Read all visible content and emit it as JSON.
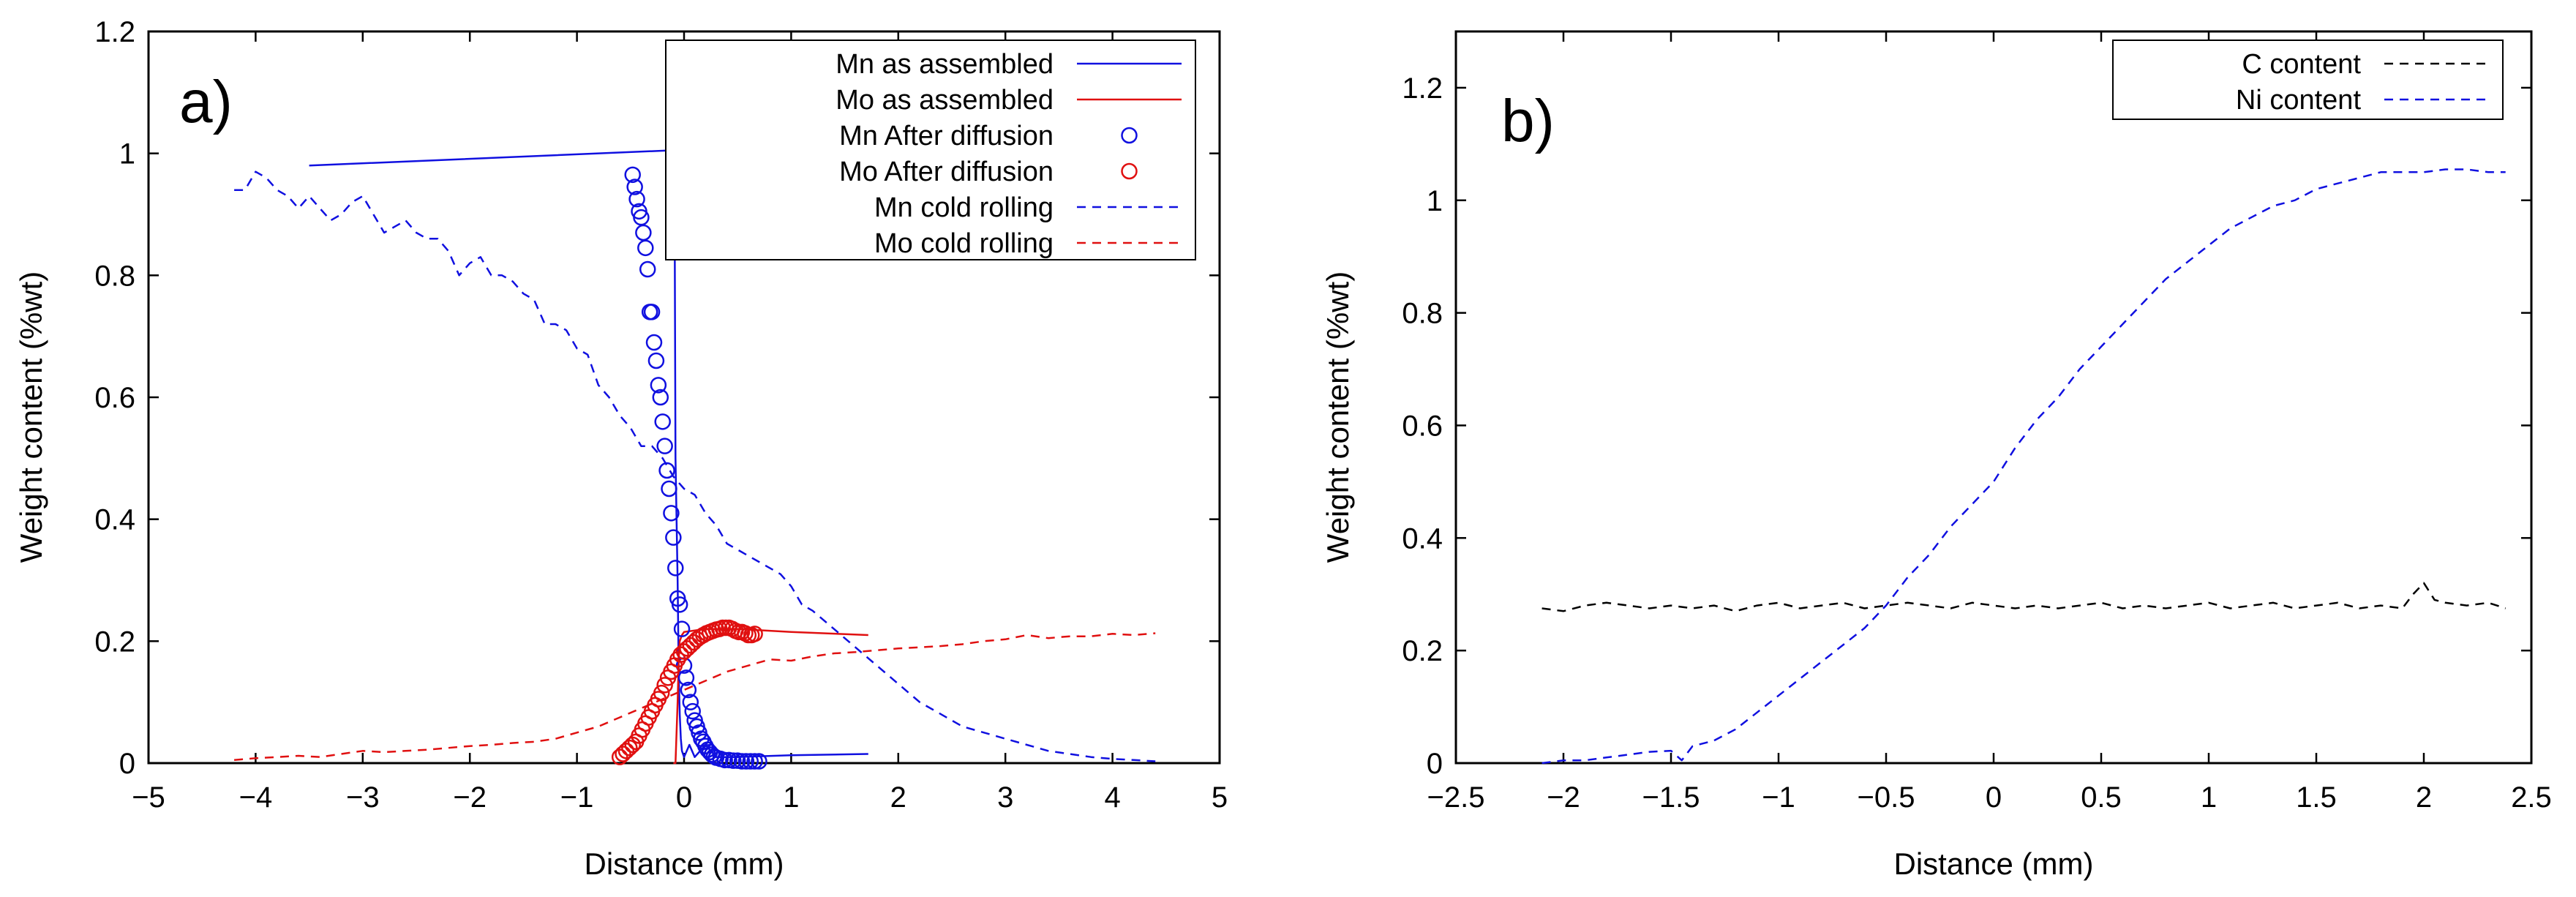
{
  "chart_data": [
    {
      "type": "line",
      "panel_label": "a)",
      "xlabel": "Distance (mm)",
      "ylabel": "Weight content (%wt)",
      "xlim": [
        -5,
        5
      ],
      "ylim": [
        0,
        1.2
      ],
      "xticks": [
        -5,
        -4,
        -3,
        -2,
        -1,
        0,
        1,
        2,
        3,
        4,
        5
      ],
      "yticks": [
        0,
        0.2,
        0.4,
        0.6,
        0.8,
        1,
        1.2
      ],
      "xtick_labels": [
        "−5",
        "−4",
        "−3",
        "−2",
        "−1",
        "0",
        "1",
        "2",
        "3",
        "4",
        "5"
      ],
      "ytick_labels": [
        "0",
        "0.2",
        "0.4",
        "0.6",
        "0.8",
        "1",
        "1.2"
      ],
      "legend_position": "top-right",
      "series": [
        {
          "name": "Mn as assembled",
          "style": "solid",
          "color": "#1010e0",
          "x": [
            -3.5,
            -0.12,
            -0.1,
            -0.09,
            -0.09,
            -0.08,
            -0.06,
            -0.05,
            -0.04,
            -0.03,
            -0.02,
            0.0,
            0.05,
            0.1,
            0.2,
            0.3,
            0.5,
            1.0,
            1.72
          ],
          "y": [
            0.98,
            1.005,
            1.01,
            0.96,
            1.02,
            0.5,
            0.3,
            0.15,
            0.08,
            0.04,
            0.02,
            0.01,
            0.03,
            0.01,
            0.03,
            0.01,
            0.01,
            0.013,
            0.015
          ]
        },
        {
          "name": "Mo as assembled",
          "style": "solid",
          "color": "#e01010",
          "x": [
            -0.1,
            -0.08,
            -0.06,
            -0.05,
            -0.04,
            -0.02,
            0.0,
            0.2,
            0.5,
            1.0,
            1.72
          ],
          "y": [
            0.0,
            0.0,
            0.1,
            0.17,
            0.2,
            0.21,
            0.215,
            0.22,
            0.22,
            0.215,
            0.21
          ]
        },
        {
          "name": "Mn After diffusion",
          "style": "circle",
          "color": "#1010e0",
          "x": [
            -0.48,
            -0.46,
            -0.44,
            -0.42,
            -0.4,
            -0.38,
            -0.36,
            -0.34,
            -0.32,
            -0.3,
            -0.28,
            -0.26,
            -0.24,
            -0.22,
            -0.2,
            -0.18,
            -0.16,
            -0.14,
            -0.12,
            -0.1,
            -0.08,
            -0.06,
            -0.04,
            -0.02,
            0.0,
            0.02,
            0.04,
            0.06,
            0.08,
            0.1,
            0.12,
            0.14,
            0.16,
            0.18,
            0.2,
            0.22,
            0.24,
            0.26,
            0.28,
            0.3,
            0.34,
            0.38,
            0.42,
            0.46,
            0.5,
            0.54,
            0.58,
            0.62,
            0.66,
            0.7
          ],
          "y": [
            0.965,
            0.945,
            0.925,
            0.905,
            0.895,
            0.87,
            0.845,
            0.81,
            0.74,
            0.74,
            0.69,
            0.66,
            0.62,
            0.6,
            0.56,
            0.52,
            0.48,
            0.45,
            0.41,
            0.37,
            0.32,
            0.27,
            0.26,
            0.22,
            0.16,
            0.14,
            0.12,
            0.1,
            0.085,
            0.07,
            0.06,
            0.05,
            0.04,
            0.035,
            0.028,
            0.022,
            0.018,
            0.014,
            0.011,
            0.009,
            0.007,
            0.005,
            0.005,
            0.004,
            0.004,
            0.003,
            0.003,
            0.003,
            0.003,
            0.003
          ]
        },
        {
          "name": "Mo After diffusion",
          "style": "circle",
          "color": "#e01010",
          "x": [
            -0.6,
            -0.57,
            -0.54,
            -0.51,
            -0.48,
            -0.45,
            -0.42,
            -0.39,
            -0.36,
            -0.33,
            -0.3,
            -0.27,
            -0.24,
            -0.21,
            -0.18,
            -0.15,
            -0.12,
            -0.09,
            -0.06,
            -0.03,
            0.0,
            0.03,
            0.06,
            0.09,
            0.12,
            0.15,
            0.18,
            0.21,
            0.24,
            0.27,
            0.3,
            0.33,
            0.36,
            0.39,
            0.42,
            0.45,
            0.48,
            0.51,
            0.54,
            0.57,
            0.6,
            0.63,
            0.66
          ],
          "y": [
            0.01,
            0.015,
            0.02,
            0.025,
            0.03,
            0.035,
            0.045,
            0.055,
            0.065,
            0.075,
            0.085,
            0.095,
            0.105,
            0.115,
            0.128,
            0.14,
            0.15,
            0.16,
            0.17,
            0.178,
            0.183,
            0.188,
            0.193,
            0.198,
            0.203,
            0.207,
            0.21,
            0.213,
            0.215,
            0.217,
            0.219,
            0.22,
            0.222,
            0.222,
            0.222,
            0.22,
            0.217,
            0.215,
            0.215,
            0.213,
            0.21,
            0.21,
            0.212
          ]
        },
        {
          "name": "Mn cold rolling",
          "style": "dashed",
          "color": "#1010e0",
          "x": [
            -4.2,
            -4.1,
            -4.0,
            -3.9,
            -3.8,
            -3.7,
            -3.6,
            -3.5,
            -3.4,
            -3.3,
            -3.2,
            -3.1,
            -3.0,
            -2.9,
            -2.8,
            -2.7,
            -2.6,
            -2.5,
            -2.4,
            -2.3,
            -2.2,
            -2.1,
            -2.0,
            -1.9,
            -1.8,
            -1.7,
            -1.6,
            -1.5,
            -1.4,
            -1.3,
            -1.2,
            -1.1,
            -1.0,
            -0.9,
            -0.8,
            -0.7,
            -0.6,
            -0.5,
            -0.4,
            -0.3,
            -0.2,
            -0.1,
            0.0,
            0.1,
            0.2,
            0.3,
            0.4,
            0.5,
            0.6,
            0.7,
            0.8,
            0.9,
            1.0,
            1.1,
            1.2,
            1.4,
            1.6,
            1.8,
            2.0,
            2.2,
            2.4,
            2.6,
            2.8,
            3.0,
            3.2,
            3.4,
            3.6,
            3.8,
            4.0,
            4.2,
            4.4
          ],
          "y": [
            0.94,
            0.94,
            0.97,
            0.96,
            0.94,
            0.93,
            0.91,
            0.93,
            0.91,
            0.89,
            0.9,
            0.92,
            0.93,
            0.9,
            0.87,
            0.88,
            0.89,
            0.87,
            0.86,
            0.86,
            0.84,
            0.8,
            0.82,
            0.83,
            0.8,
            0.8,
            0.79,
            0.77,
            0.76,
            0.72,
            0.72,
            0.71,
            0.68,
            0.67,
            0.62,
            0.6,
            0.57,
            0.55,
            0.52,
            0.52,
            0.5,
            0.47,
            0.45,
            0.44,
            0.41,
            0.39,
            0.36,
            0.35,
            0.34,
            0.33,
            0.32,
            0.31,
            0.29,
            0.26,
            0.25,
            0.22,
            0.19,
            0.16,
            0.13,
            0.1,
            0.08,
            0.06,
            0.05,
            0.04,
            0.03,
            0.02,
            0.015,
            0.01,
            0.007,
            0.005,
            0.003
          ]
        },
        {
          "name": "Mo cold rolling",
          "style": "dashed",
          "color": "#e01010",
          "x": [
            -4.2,
            -4.0,
            -3.8,
            -3.6,
            -3.4,
            -3.2,
            -3.0,
            -2.8,
            -2.6,
            -2.4,
            -2.2,
            -2.0,
            -1.8,
            -1.6,
            -1.4,
            -1.2,
            -1.0,
            -0.8,
            -0.6,
            -0.4,
            -0.2,
            0.0,
            0.2,
            0.4,
            0.6,
            0.8,
            1.0,
            1.2,
            1.4,
            1.6,
            1.8,
            2.0,
            2.2,
            2.4,
            2.6,
            2.8,
            3.0,
            3.2,
            3.4,
            3.6,
            3.8,
            4.0,
            4.2,
            4.4
          ],
          "y": [
            0.005,
            0.008,
            0.01,
            0.012,
            0.01,
            0.015,
            0.02,
            0.018,
            0.02,
            0.022,
            0.025,
            0.028,
            0.03,
            0.033,
            0.035,
            0.04,
            0.05,
            0.06,
            0.075,
            0.09,
            0.105,
            0.12,
            0.135,
            0.15,
            0.16,
            0.17,
            0.168,
            0.175,
            0.18,
            0.182,
            0.185,
            0.188,
            0.19,
            0.192,
            0.195,
            0.2,
            0.203,
            0.21,
            0.205,
            0.208,
            0.208,
            0.212,
            0.21,
            0.213
          ]
        }
      ]
    },
    {
      "type": "line",
      "panel_label": "b)",
      "xlabel": "Distance (mm)",
      "ylabel": "Weight content (%wt)",
      "xlim": [
        -2.5,
        2.5
      ],
      "ylim": [
        0,
        1.3
      ],
      "xticks": [
        -2.5,
        -2,
        -1.5,
        -1,
        -0.5,
        0,
        0.5,
        1,
        1.5,
        2,
        2.5
      ],
      "yticks": [
        0,
        0.2,
        0.4,
        0.6,
        0.8,
        1,
        1.2
      ],
      "xtick_labels": [
        "−2.5",
        "−2",
        "−1.5",
        "−1",
        "−0.5",
        "0",
        "0.5",
        "1",
        "1.5",
        "2",
        "2.5"
      ],
      "ytick_labels": [
        "0",
        "0.2",
        "0.4",
        "0.6",
        "0.8",
        "1",
        "1.2"
      ],
      "legend_position": "top-right",
      "series": [
        {
          "name": "C content",
          "style": "dashed",
          "color": "#000000",
          "x": [
            -2.1,
            -2.0,
            -1.9,
            -1.8,
            -1.7,
            -1.6,
            -1.5,
            -1.4,
            -1.3,
            -1.2,
            -1.1,
            -1.0,
            -0.9,
            -0.8,
            -0.7,
            -0.6,
            -0.5,
            -0.4,
            -0.3,
            -0.2,
            -0.1,
            0.0,
            0.1,
            0.2,
            0.3,
            0.4,
            0.5,
            0.6,
            0.7,
            0.8,
            0.9,
            1.0,
            1.1,
            1.2,
            1.3,
            1.4,
            1.5,
            1.6,
            1.7,
            1.8,
            1.9,
            1.95,
            2.0,
            2.05,
            2.1,
            2.2,
            2.3,
            2.38
          ],
          "y": [
            0.275,
            0.27,
            0.28,
            0.285,
            0.28,
            0.275,
            0.28,
            0.275,
            0.28,
            0.27,
            0.28,
            0.285,
            0.275,
            0.28,
            0.285,
            0.275,
            0.28,
            0.285,
            0.28,
            0.275,
            0.285,
            0.28,
            0.275,
            0.28,
            0.275,
            0.28,
            0.285,
            0.275,
            0.28,
            0.275,
            0.28,
            0.285,
            0.275,
            0.28,
            0.285,
            0.275,
            0.28,
            0.285,
            0.275,
            0.28,
            0.275,
            0.3,
            0.32,
            0.29,
            0.285,
            0.28,
            0.285,
            0.275
          ]
        },
        {
          "name": "Ni content",
          "style": "dashed",
          "color": "#1010e0",
          "x": [
            -2.1,
            -2.0,
            -1.9,
            -1.8,
            -1.7,
            -1.6,
            -1.5,
            -1.45,
            -1.4,
            -1.3,
            -1.2,
            -1.1,
            -1.0,
            -0.9,
            -0.8,
            -0.7,
            -0.6,
            -0.5,
            -0.4,
            -0.3,
            -0.2,
            -0.1,
            0.0,
            0.1,
            0.2,
            0.3,
            0.4,
            0.5,
            0.6,
            0.7,
            0.8,
            0.9,
            1.0,
            1.1,
            1.2,
            1.3,
            1.4,
            1.5,
            1.6,
            1.7,
            1.8,
            1.9,
            2.0,
            2.1,
            2.2,
            2.3,
            2.38
          ],
          "y": [
            0.0,
            0.005,
            0.005,
            0.01,
            0.015,
            0.02,
            0.022,
            0.005,
            0.03,
            0.04,
            0.06,
            0.09,
            0.12,
            0.15,
            0.18,
            0.21,
            0.24,
            0.28,
            0.33,
            0.37,
            0.42,
            0.46,
            0.5,
            0.56,
            0.61,
            0.65,
            0.7,
            0.74,
            0.78,
            0.82,
            0.86,
            0.89,
            0.92,
            0.95,
            0.97,
            0.99,
            1.0,
            1.02,
            1.03,
            1.04,
            1.05,
            1.05,
            1.05,
            1.055,
            1.055,
            1.05,
            1.05
          ]
        }
      ]
    }
  ]
}
